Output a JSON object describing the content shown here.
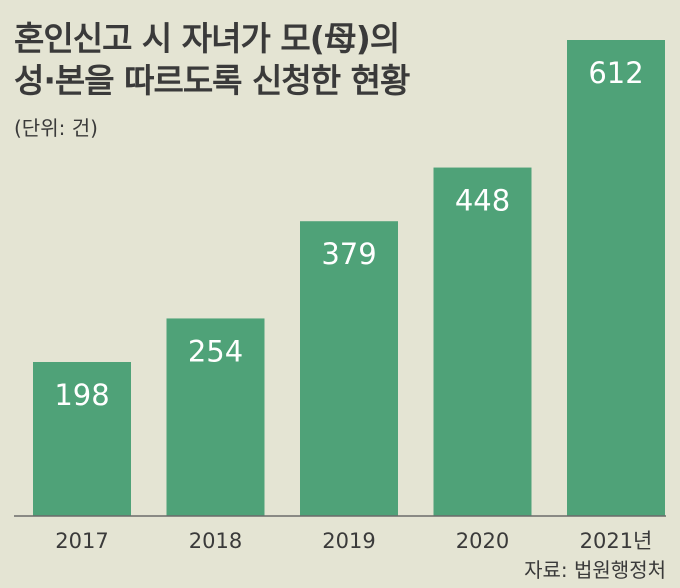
{
  "chart_data": {
    "type": "bar",
    "title": "혼인신고 시 자녀가 모(母)의 성·본을 따르도록 신청한 현황",
    "title_lines": [
      "혼인신고 시 자녀가 모(母)의",
      "성·본을 따르도록 신청한 현황"
    ],
    "unit_label": "(단위: 건)",
    "categories": [
      "2017",
      "2018",
      "2019",
      "2020",
      "2021년"
    ],
    "values": [
      198,
      254,
      379,
      448,
      612
    ],
    "ylim": [
      0,
      612
    ],
    "grid": false,
    "bar_color": "#4fa278",
    "source": "자료: 법원행정처"
  }
}
